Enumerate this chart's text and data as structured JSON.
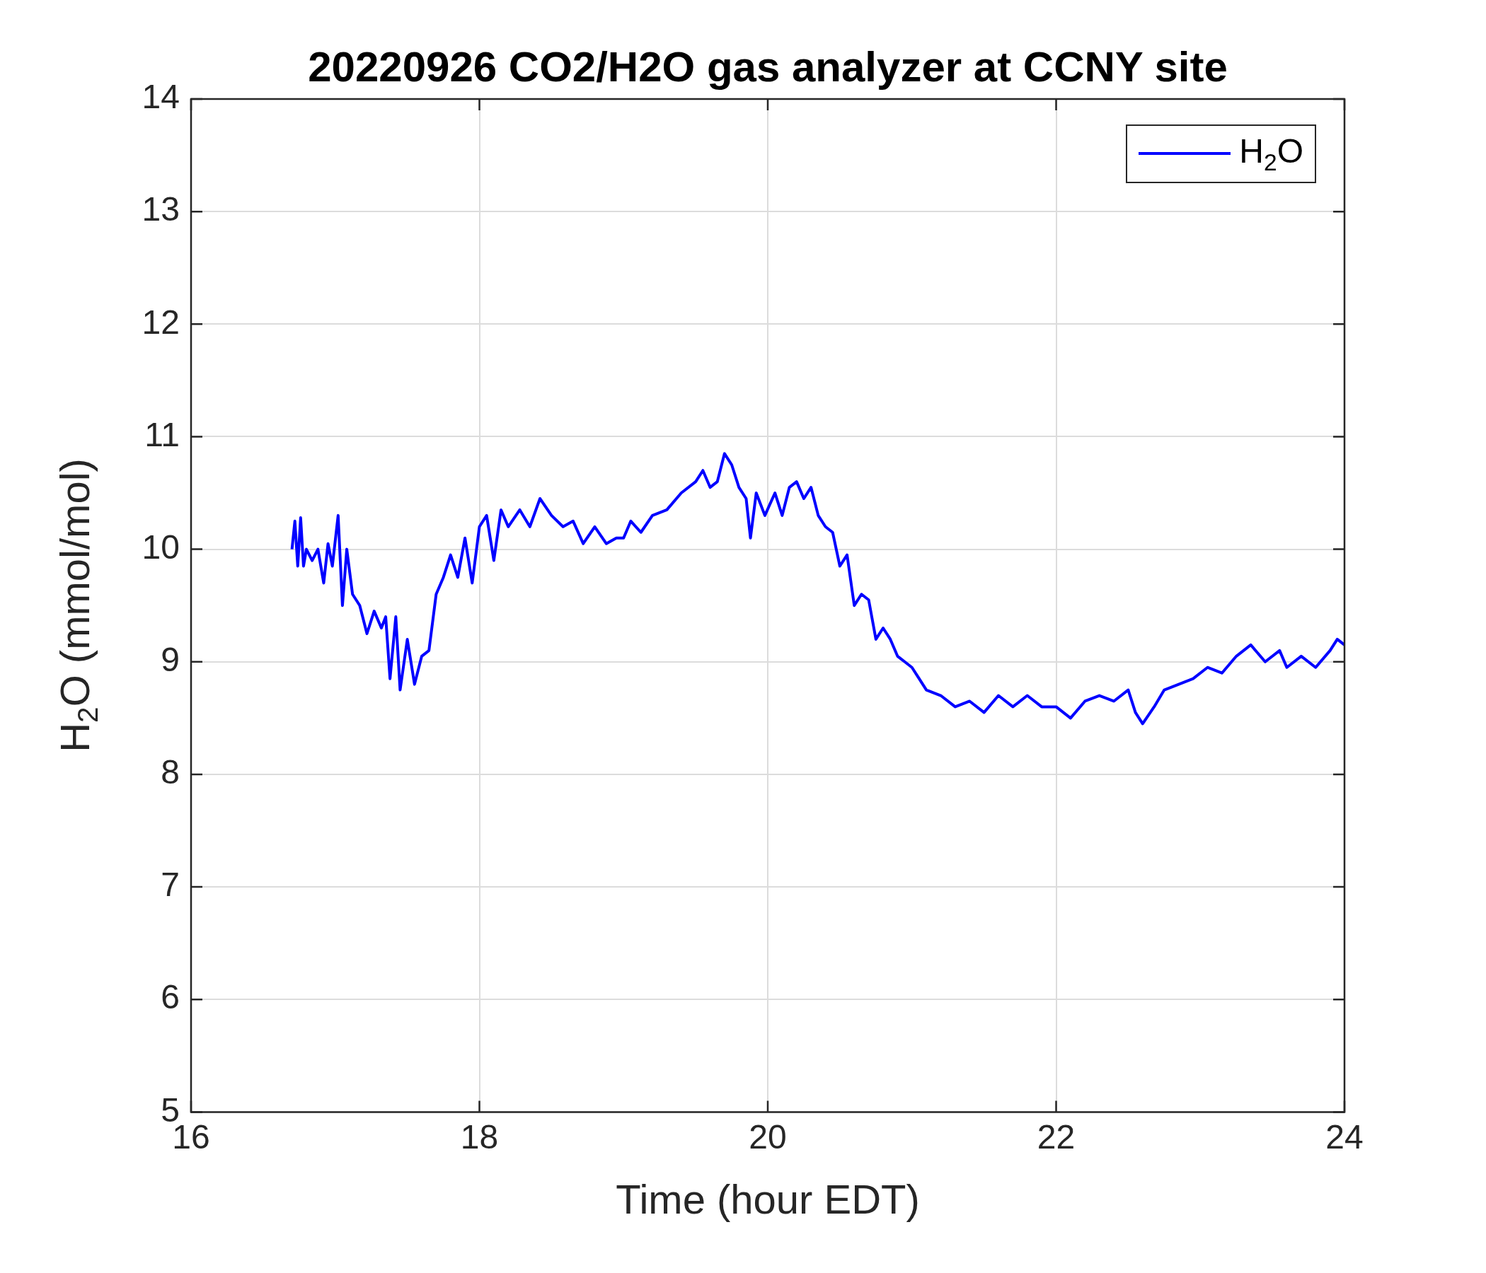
{
  "chart_data": {
    "type": "line",
    "title": "20220926 CO2/H2O gas analyzer at CCNY site",
    "xlabel": "Time (hour EDT)",
    "ylabel": "H$_{2}$O (mmol/mol)",
    "xlim": [
      16,
      24
    ],
    "xticks": [
      16,
      18,
      20,
      22,
      24
    ],
    "ylim": [
      5,
      14
    ],
    "yticks": [
      5,
      6,
      7,
      8,
      9,
      10,
      11,
      12,
      13,
      14
    ],
    "grid": true,
    "legend": "top right",
    "line_style": "solid",
    "marker": "none",
    "series": [
      {
        "name": "H$_{2}$O",
        "color": "#0000ff",
        "x": [
          16.7,
          16.72,
          16.74,
          16.76,
          16.78,
          16.8,
          16.84,
          16.88,
          16.92,
          16.95,
          16.98,
          17.02,
          17.05,
          17.08,
          17.12,
          17.17,
          17.22,
          17.27,
          17.32,
          17.35,
          17.38,
          17.42,
          17.45,
          17.5,
          17.55,
          17.6,
          17.65,
          17.7,
          17.75,
          17.8,
          17.85,
          17.9,
          17.95,
          18.0,
          18.05,
          18.1,
          18.15,
          18.2,
          18.28,
          18.35,
          18.42,
          18.5,
          18.58,
          18.65,
          18.72,
          18.8,
          18.88,
          18.95,
          19.0,
          19.05,
          19.12,
          19.2,
          19.3,
          19.4,
          19.5,
          19.55,
          19.6,
          19.65,
          19.7,
          19.75,
          19.8,
          19.85,
          19.88,
          19.92,
          19.98,
          20.05,
          20.1,
          20.15,
          20.2,
          20.25,
          20.3,
          20.35,
          20.4,
          20.45,
          20.5,
          20.55,
          20.6,
          20.65,
          20.7,
          20.75,
          20.8,
          20.85,
          20.9,
          20.95,
          21.0,
          21.05,
          21.1,
          21.2,
          21.3,
          21.4,
          21.5,
          21.6,
          21.7,
          21.8,
          21.9,
          22.0,
          22.1,
          22.2,
          22.3,
          22.4,
          22.5,
          22.55,
          22.6,
          22.68,
          22.75,
          22.85,
          22.95,
          23.05,
          23.15,
          23.25,
          23.35,
          23.45,
          23.55,
          23.6,
          23.7,
          23.8,
          23.9,
          23.95,
          24.0
        ],
        "values": [
          10.0,
          10.25,
          9.85,
          10.28,
          9.85,
          10.0,
          9.9,
          10.0,
          9.7,
          10.05,
          9.85,
          10.3,
          9.5,
          10.0,
          9.6,
          9.5,
          9.25,
          9.45,
          9.3,
          9.4,
          8.85,
          9.4,
          8.75,
          9.2,
          8.8,
          9.05,
          9.1,
          9.6,
          9.75,
          9.95,
          9.75,
          10.1,
          9.7,
          10.2,
          10.3,
          9.9,
          10.35,
          10.2,
          10.35,
          10.2,
          10.45,
          10.3,
          10.2,
          10.25,
          10.05,
          10.2,
          10.05,
          10.1,
          10.1,
          10.25,
          10.15,
          10.3,
          10.35,
          10.5,
          10.6,
          10.7,
          10.55,
          10.6,
          10.85,
          10.75,
          10.55,
          10.45,
          10.1,
          10.5,
          10.3,
          10.5,
          10.3,
          10.55,
          10.6,
          10.45,
          10.55,
          10.3,
          10.2,
          10.15,
          9.85,
          9.95,
          9.5,
          9.6,
          9.55,
          9.2,
          9.3,
          9.2,
          9.05,
          9.0,
          8.95,
          8.85,
          8.75,
          8.7,
          8.6,
          8.65,
          8.55,
          8.7,
          8.6,
          8.7,
          8.6,
          8.6,
          8.5,
          8.65,
          8.7,
          8.65,
          8.75,
          8.55,
          8.45,
          8.6,
          8.75,
          8.8,
          8.85,
          8.95,
          8.9,
          9.05,
          9.15,
          9.0,
          9.1,
          8.95,
          9.05,
          8.95,
          9.1,
          9.2,
          9.15
        ]
      }
    ]
  }
}
